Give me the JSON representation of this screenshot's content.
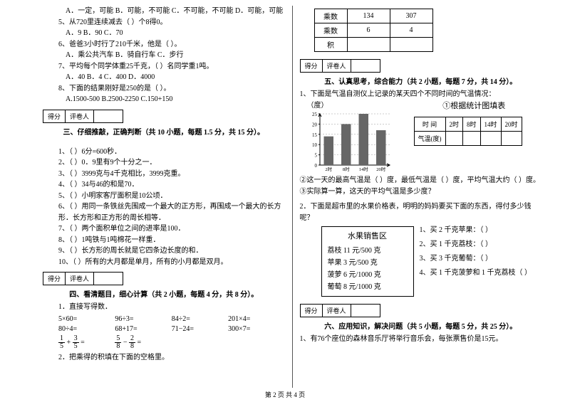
{
  "left": {
    "q4opts": "A．一定，可能   B．可能，不可能   C．不可能，不可能    D．可能，可能",
    "q5": "5、从720里连续减去（    ）个8得0。",
    "q5opts": "A．9           B．90           C．70",
    "q6": "6、爸爸3小时行了210千米，他是（    ）。",
    "q6opts": "A．乘公共汽车      B．骑自行车      C．步行",
    "q7": "7、平均每个同学体重25千克，（    ）名同学重1吨。",
    "q7opts": "A．40       B．4       C．400       D．4000",
    "q8": "8、下面的结果刚好是250的是（    ）。",
    "q8opts": "A.1500-500      B.2500-2250      C.150+150",
    "scoreLabel1": "得分",
    "scoreLabel2": "评卷人",
    "sec3": "三、仔细推敲，正确判断（共 10 小题，每题 1.5 分，共 15 分）。",
    "j1": "1、（    ）6分=600秒．",
    "j2": "2、（    ）0．9里有9个十分之一．",
    "j3": "3、（    ）3999克与4千克相比，3999克重。",
    "j4": "4、（    ）34与46的和是70．",
    "j5": "5、（    ）小明家客厅面积是10公顷．",
    "j6": "6、（    ）用同一条铁丝先围成一个最大的正方形，再围成一个最大的长方形．长方形和正方形的周长相等．",
    "j7": "7、（    ）两个面积单位之间的进率是100．",
    "j8": "8、（    ）1吨铁与1吨棉花一样重．",
    "j9": "9、（    ）长方形的周长就是它四条边长度的和．",
    "j10": "10、（    ）所有的大月都是单月，所有的小月都是双月。",
    "sec4": "四、看清题目，细心计算（共 2 小题，每题 4 分，共 8 分）。",
    "c1label": "1．直接写得数．",
    "calc": {
      "r1c1": "5×60=",
      "r1c2": "96÷3=",
      "r1c3": "84÷2=",
      "r1c4": "201×4=",
      "r2c1": "80÷4=",
      "r2c2": "68+17=",
      "r2c3": "71−24=",
      "r2c4": "300×7="
    },
    "c2label": "2．把乘得的积填在下面的空格里。"
  },
  "right": {
    "tbl": {
      "h1": "乘数",
      "v1a": "134",
      "v1b": "307",
      "h2": "乘数",
      "v2a": "6",
      "v2b": "4",
      "h3": "积"
    },
    "sec5": "五、认真思考，综合能力（共 2 小题，每题 7 分，共 14 分）。",
    "q1": "1、下面是气温自测仪上记录的某天四个不同时间的气温情况：",
    "chartTitle": "①根据统计图填表",
    "unit": "（度）",
    "yTicks": [
      "25",
      "20",
      "15",
      "10",
      "5",
      "0"
    ],
    "xTicks": [
      "2时",
      "8时",
      "14时",
      "20时"
    ],
    "bars": [
      14,
      20,
      25,
      17
    ],
    "barColor": "#666666",
    "axisColor": "#000000",
    "miniTbl": {
      "h1": "时   间",
      "t1": "2时",
      "t2": "8时",
      "t3": "14时",
      "t4": "20时",
      "h2": "气温(度)"
    },
    "line2": "②这一天的最高气温是（       ）度，最低气温是（       ）度，平均气温大约（       ）度。",
    "line3": "③实际算一算，这天的平均气温是多少度？",
    "q2": "2．下面是超市里的水果价格表，明明的妈妈要买下面的东西，得付多少钱呢？",
    "priceTitle": "水果销售区",
    "p1": "荔枝 11 元/500 克",
    "p2": "苹果 3 元/500 克",
    "p3": "菠萝 6 元/1000 克",
    "p4": "葡萄 8 元/1000 克",
    "r1": "1、买 2 千克苹果：（         ）",
    "r2": "2、买 1 千克荔枝：（         ）",
    "r3": "3、买 3 千克葡萄：（         ）",
    "r4": "4、买 1 千克菠萝和 1 千克荔枝（      ）",
    "sec6": "六、应用知识，解决问题（共 5 小题，每题 5 分，共 25 分）。",
    "s6q1": "1、有76个座位的森林音乐厅将举行音乐会，每张票售价是15元。"
  },
  "footer": "第 2 页 共 4 页"
}
